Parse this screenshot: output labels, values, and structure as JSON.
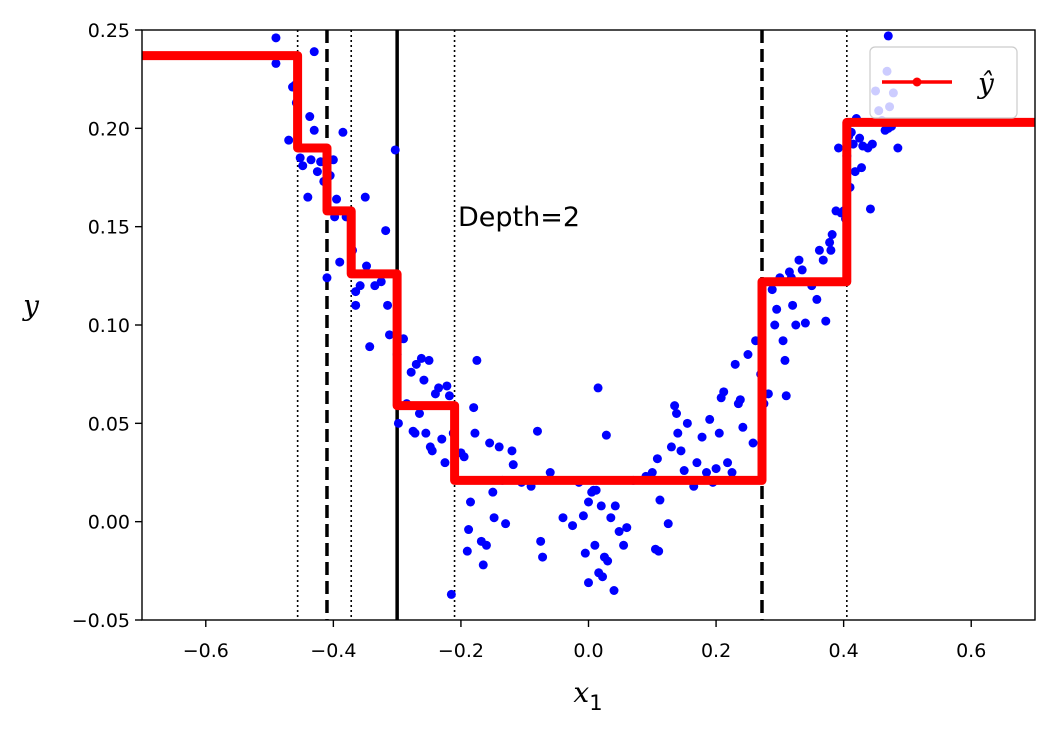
{
  "chart_data": {
    "type": "scatter",
    "title": "",
    "xlabel": "x",
    "xlabel_subscript": "1",
    "ylabel": "y",
    "xlim": [
      -0.7,
      0.7
    ],
    "ylim": [
      -0.05,
      0.25
    ],
    "x_ticks": [
      -0.6,
      -0.4,
      -0.2,
      0.0,
      0.2,
      0.4,
      0.6
    ],
    "x_tick_labels": [
      "−0.6",
      "−0.4",
      "−0.2",
      "0.0",
      "0.2",
      "0.4",
      "0.6"
    ],
    "y_ticks": [
      -0.05,
      0.0,
      0.05,
      0.1,
      0.15,
      0.2,
      0.25
    ],
    "y_tick_labels": [
      "−0.05",
      "0.00",
      "0.05",
      "0.10",
      "0.15",
      "0.20",
      "0.25"
    ],
    "grid": false,
    "annotation": "Depth=2",
    "legend": {
      "position": "top-right",
      "entries": [
        "ŷ"
      ]
    },
    "colors": {
      "points": "#0000ff",
      "prediction": "#ff0000",
      "split_lines": "#000000"
    },
    "split_lines": [
      {
        "x": -0.3,
        "style": "solid"
      },
      {
        "x": -0.41,
        "style": "dashed"
      },
      {
        "x": 0.272,
        "style": "dashed"
      },
      {
        "x": -0.456,
        "style": "dotted"
      },
      {
        "x": -0.372,
        "style": "dotted"
      },
      {
        "x": -0.21,
        "style": "dotted"
      },
      {
        "x": 0.405,
        "style": "dotted"
      }
    ],
    "prediction_steps": {
      "name": "ŷ",
      "x": [
        -0.7,
        -0.456,
        -0.456,
        -0.41,
        -0.41,
        -0.372,
        -0.372,
        -0.3,
        -0.3,
        -0.21,
        -0.21,
        0.272,
        0.272,
        0.405,
        0.405,
        0.7
      ],
      "y": [
        0.237,
        0.237,
        0.19,
        0.19,
        0.158,
        0.158,
        0.126,
        0.126,
        0.059,
        0.059,
        0.021,
        0.021,
        0.122,
        0.122,
        0.203,
        0.203
      ]
    },
    "points": [
      [
        -0.49,
        0.246
      ],
      [
        -0.49,
        0.233
      ],
      [
        -0.47,
        0.194
      ],
      [
        -0.464,
        0.221
      ],
      [
        -0.46,
        0.222
      ],
      [
        -0.458,
        0.213
      ],
      [
        -0.452,
        0.185
      ],
      [
        -0.448,
        0.181
      ],
      [
        -0.44,
        0.165
      ],
      [
        -0.437,
        0.206
      ],
      [
        -0.435,
        0.184
      ],
      [
        -0.43,
        0.239
      ],
      [
        -0.43,
        0.199
      ],
      [
        -0.425,
        0.178
      ],
      [
        -0.42,
        0.183
      ],
      [
        -0.415,
        0.173
      ],
      [
        -0.41,
        0.124
      ],
      [
        -0.405,
        0.176
      ],
      [
        -0.4,
        0.184
      ],
      [
        -0.398,
        0.155
      ],
      [
        -0.395,
        0.164
      ],
      [
        -0.39,
        0.132
      ],
      [
        -0.385,
        0.198
      ],
      [
        -0.38,
        0.155
      ],
      [
        -0.37,
        0.138
      ],
      [
        -0.365,
        0.117
      ],
      [
        -0.365,
        0.11
      ],
      [
        -0.358,
        0.12
      ],
      [
        -0.35,
        0.165
      ],
      [
        -0.348,
        0.13
      ],
      [
        -0.343,
        0.089
      ],
      [
        -0.335,
        0.12
      ],
      [
        -0.325,
        0.122
      ],
      [
        -0.318,
        0.148
      ],
      [
        -0.315,
        0.11
      ],
      [
        -0.312,
        0.095
      ],
      [
        -0.303,
        0.189
      ],
      [
        -0.3,
        0.085
      ],
      [
        -0.298,
        0.05
      ],
      [
        -0.29,
        0.093
      ],
      [
        -0.285,
        0.06
      ],
      [
        -0.278,
        0.076
      ],
      [
        -0.275,
        0.046
      ],
      [
        -0.272,
        0.045
      ],
      [
        -0.27,
        0.08
      ],
      [
        -0.265,
        0.055
      ],
      [
        -0.262,
        0.083
      ],
      [
        -0.258,
        0.072
      ],
      [
        -0.255,
        0.045
      ],
      [
        -0.25,
        0.082
      ],
      [
        -0.248,
        0.038
      ],
      [
        -0.245,
        0.036
      ],
      [
        -0.24,
        0.065
      ],
      [
        -0.235,
        0.068
      ],
      [
        -0.23,
        0.042
      ],
      [
        -0.225,
        0.03
      ],
      [
        -0.222,
        0.069
      ],
      [
        -0.218,
        0.064
      ],
      [
        -0.215,
        -0.037
      ],
      [
        -0.212,
        0.045
      ],
      [
        -0.2,
        0.035
      ],
      [
        -0.195,
        0.033
      ],
      [
        -0.19,
        -0.015
      ],
      [
        -0.188,
        -0.004
      ],
      [
        -0.185,
        0.01
      ],
      [
        -0.18,
        0.058
      ],
      [
        -0.178,
        0.045
      ],
      [
        -0.175,
        0.082
      ],
      [
        -0.168,
        -0.01
      ],
      [
        -0.165,
        -0.022
      ],
      [
        -0.16,
        -0.012
      ],
      [
        -0.155,
        0.04
      ],
      [
        -0.15,
        0.015
      ],
      [
        -0.148,
        0.002
      ],
      [
        -0.14,
        0.038
      ],
      [
        -0.135,
        0.021
      ],
      [
        -0.13,
        -0.001
      ],
      [
        -0.12,
        0.036
      ],
      [
        -0.118,
        0.029
      ],
      [
        -0.105,
        0.02
      ],
      [
        -0.09,
        0.018
      ],
      [
        -0.08,
        0.046
      ],
      [
        -0.075,
        -0.01
      ],
      [
        -0.072,
        -0.018
      ],
      [
        -0.06,
        0.025
      ],
      [
        -0.04,
        0.002
      ],
      [
        -0.025,
        -0.002
      ],
      [
        -0.015,
        0.02
      ],
      [
        -0.008,
        0.003
      ],
      [
        -0.005,
        -0.016
      ],
      [
        0.0,
        -0.031
      ],
      [
        0.0,
        0.01
      ],
      [
        0.005,
        0.015
      ],
      [
        0.008,
        0.016
      ],
      [
        0.01,
        -0.012
      ],
      [
        0.012,
        0.016
      ],
      [
        0.015,
        0.068
      ],
      [
        0.016,
        -0.026
      ],
      [
        0.02,
        0.008
      ],
      [
        0.022,
        -0.028
      ],
      [
        0.025,
        -0.018
      ],
      [
        0.028,
        0.044
      ],
      [
        0.03,
        -0.02
      ],
      [
        0.035,
        0.002
      ],
      [
        0.04,
        -0.035
      ],
      [
        0.042,
        0.008
      ],
      [
        0.048,
        -0.005
      ],
      [
        0.055,
        -0.012
      ],
      [
        0.06,
        -0.003
      ],
      [
        0.07,
        0.021
      ],
      [
        0.09,
        0.023
      ],
      [
        0.1,
        0.025
      ],
      [
        0.105,
        -0.014
      ],
      [
        0.108,
        0.032
      ],
      [
        0.11,
        -0.015
      ],
      [
        0.112,
        0.011
      ],
      [
        0.125,
        -0.001
      ],
      [
        0.13,
        0.038
      ],
      [
        0.135,
        0.059
      ],
      [
        0.138,
        0.055
      ],
      [
        0.14,
        0.045
      ],
      [
        0.145,
        0.036
      ],
      [
        0.15,
        0.026
      ],
      [
        0.155,
        0.05
      ],
      [
        0.165,
        0.018
      ],
      [
        0.17,
        0.03
      ],
      [
        0.178,
        0.043
      ],
      [
        0.185,
        0.025
      ],
      [
        0.19,
        0.052
      ],
      [
        0.195,
        0.02
      ],
      [
        0.2,
        0.027
      ],
      [
        0.205,
        0.045
      ],
      [
        0.208,
        0.063
      ],
      [
        0.212,
        0.066
      ],
      [
        0.218,
        0.03
      ],
      [
        0.225,
        0.025
      ],
      [
        0.23,
        0.08
      ],
      [
        0.235,
        0.06
      ],
      [
        0.238,
        0.062
      ],
      [
        0.242,
        0.048
      ],
      [
        0.25,
        0.085
      ],
      [
        0.258,
        0.04
      ],
      [
        0.262,
        0.092
      ],
      [
        0.27,
        0.075
      ],
      [
        0.275,
        0.06
      ],
      [
        0.282,
        0.065
      ],
      [
        0.288,
        0.118
      ],
      [
        0.292,
        0.1
      ],
      [
        0.295,
        0.108
      ],
      [
        0.3,
        0.124
      ],
      [
        0.305,
        0.092
      ],
      [
        0.308,
        0.082
      ],
      [
        0.31,
        0.064
      ],
      [
        0.315,
        0.127
      ],
      [
        0.318,
        0.124
      ],
      [
        0.32,
        0.11
      ],
      [
        0.325,
        0.1
      ],
      [
        0.33,
        0.133
      ],
      [
        0.335,
        0.128
      ],
      [
        0.34,
        0.101
      ],
      [
        0.35,
        0.12
      ],
      [
        0.358,
        0.113
      ],
      [
        0.362,
        0.138
      ],
      [
        0.368,
        0.133
      ],
      [
        0.372,
        0.102
      ],
      [
        0.378,
        0.142
      ],
      [
        0.38,
        0.138
      ],
      [
        0.382,
        0.146
      ],
      [
        0.388,
        0.158
      ],
      [
        0.392,
        0.19
      ],
      [
        0.396,
        0.157
      ],
      [
        0.4,
        0.158
      ],
      [
        0.403,
        0.154
      ],
      [
        0.405,
        0.186
      ],
      [
        0.408,
        0.196
      ],
      [
        0.41,
        0.17
      ],
      [
        0.412,
        0.198
      ],
      [
        0.415,
        0.192
      ],
      [
        0.418,
        0.178
      ],
      [
        0.42,
        0.205
      ],
      [
        0.425,
        0.195
      ],
      [
        0.428,
        0.18
      ],
      [
        0.43,
        0.191
      ],
      [
        0.438,
        0.19
      ],
      [
        0.442,
        0.159
      ],
      [
        0.445,
        0.192
      ],
      [
        0.45,
        0.219
      ],
      [
        0.455,
        0.209
      ],
      [
        0.46,
        0.204
      ],
      [
        0.465,
        0.199
      ],
      [
        0.468,
        0.229
      ],
      [
        0.47,
        0.2
      ],
      [
        0.472,
        0.211
      ],
      [
        0.475,
        0.201
      ],
      [
        0.478,
        0.218
      ],
      [
        0.485,
        0.19
      ],
      [
        0.47,
        0.247
      ]
    ]
  }
}
